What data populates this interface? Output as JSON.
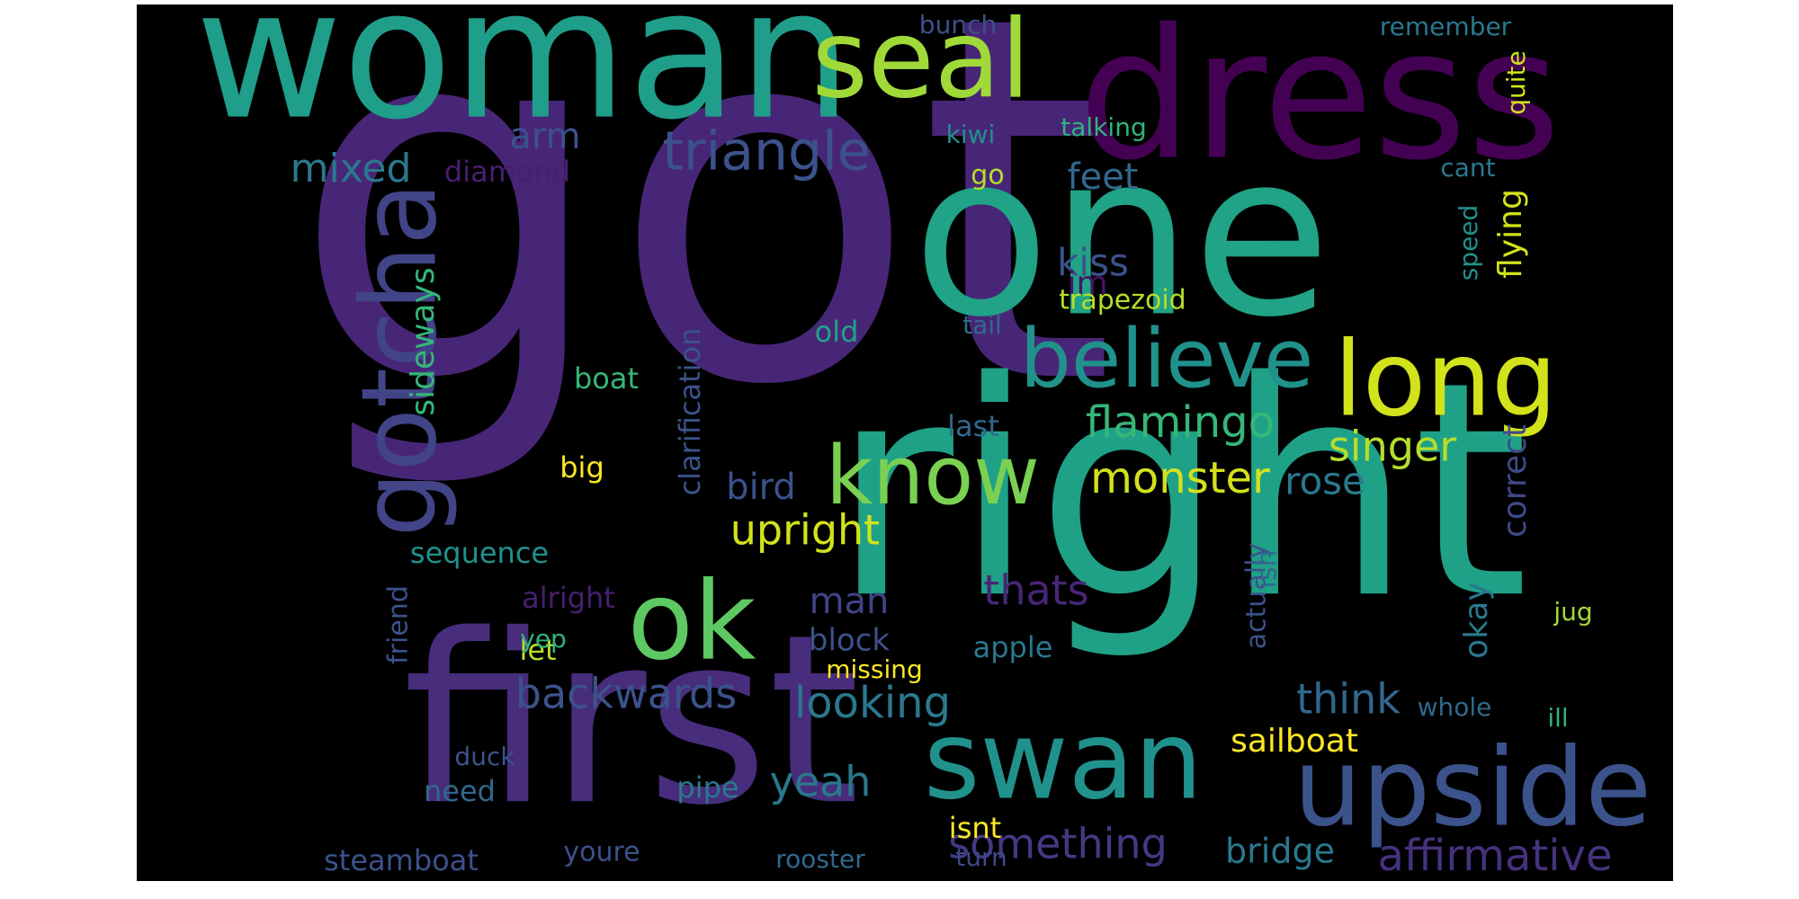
{
  "word_cloud": {
    "words": [
      {
        "text": "got",
        "color": "#482677"
      },
      {
        "text": "right",
        "color": "#1fa187"
      },
      {
        "text": "first",
        "color": "#472d7b"
      },
      {
        "text": "one",
        "color": "#20a386"
      },
      {
        "text": "woman",
        "color": "#1f9e89"
      },
      {
        "text": "dress",
        "color": "#440154"
      },
      {
        "text": "seal",
        "color": "#a0da39"
      },
      {
        "text": "upside",
        "color": "#3b528b"
      },
      {
        "text": "swan",
        "color": "#21918c"
      },
      {
        "text": "long",
        "color": "#d2e21b"
      },
      {
        "text": "ok",
        "color": "#5ec962"
      },
      {
        "text": "gotcha",
        "color": "#414487"
      },
      {
        "text": "believe",
        "color": "#21918c"
      },
      {
        "text": "know",
        "color": "#7ad151"
      },
      {
        "text": "triangle",
        "color": "#3b528b"
      },
      {
        "text": "affirmative",
        "color": "#46327e"
      },
      {
        "text": "sideways",
        "color": "#35b779"
      },
      {
        "text": "flamingo",
        "color": "#35b779"
      },
      {
        "text": "monster",
        "color": "#d2e21b"
      },
      {
        "text": "singer",
        "color": "#b5de2b"
      },
      {
        "text": "backwards",
        "color": "#3b528b"
      },
      {
        "text": "looking",
        "color": "#2a788e"
      },
      {
        "text": "something",
        "color": "#443983"
      },
      {
        "text": "upright",
        "color": "#d2e21b"
      },
      {
        "text": "think",
        "color": "#31688e"
      },
      {
        "text": "yeah",
        "color": "#2a788e"
      },
      {
        "text": "sailboat",
        "color": "#fde725"
      },
      {
        "text": "bridge",
        "color": "#2a788e"
      },
      {
        "text": "mixed",
        "color": "#2a788e"
      },
      {
        "text": "feet",
        "color": "#31688e"
      },
      {
        "text": "kiss",
        "color": "#3b528b"
      },
      {
        "text": "bird",
        "color": "#3b528b"
      },
      {
        "text": "rose",
        "color": "#2a788e"
      },
      {
        "text": "thats",
        "color": "#482677"
      },
      {
        "text": "man",
        "color": "#414487"
      },
      {
        "text": "correct",
        "color": "#3e4a89"
      },
      {
        "text": "flying",
        "color": "#d2e21b"
      },
      {
        "text": "okay",
        "color": "#2a788e"
      },
      {
        "text": "clarification",
        "color": "#3b528b"
      },
      {
        "text": "steamboat",
        "color": "#3b528b"
      },
      {
        "text": "sequence",
        "color": "#21918c"
      },
      {
        "text": "arm",
        "color": "#3b528b"
      },
      {
        "text": "diamond",
        "color": "#481f70"
      },
      {
        "text": "block",
        "color": "#3b528b"
      },
      {
        "text": "apple",
        "color": "#2a788e"
      },
      {
        "text": "im",
        "color": "#481467"
      },
      {
        "text": "old",
        "color": "#20a386"
      },
      {
        "text": "boat",
        "color": "#35b779"
      },
      {
        "text": "alright",
        "color": "#481f70"
      },
      {
        "text": "trapezoid",
        "color": "#b5de2b"
      },
      {
        "text": "talking",
        "color": "#2fb47c"
      },
      {
        "text": "quite",
        "color": "#d2e21b"
      },
      {
        "text": "speed",
        "color": "#21918c"
      },
      {
        "text": "isnt",
        "color": "#fde725"
      },
      {
        "text": "need",
        "color": "#31688e"
      },
      {
        "text": "pipe",
        "color": "#2a788e"
      },
      {
        "text": "turn",
        "color": "#3e4a89"
      },
      {
        "text": "rooster",
        "color": "#31688e"
      },
      {
        "text": "youre",
        "color": "#3b528b"
      },
      {
        "text": "big",
        "color": "#fde725"
      },
      {
        "text": "let",
        "color": "#b5de2b"
      },
      {
        "text": "last",
        "color": "#31688e"
      },
      {
        "text": "missing",
        "color": "#fde725"
      },
      {
        "text": "friend",
        "color": "#3b528b"
      },
      {
        "text": "yep",
        "color": "#2fb47c"
      },
      {
        "text": "actually",
        "color": "#3b528b"
      },
      {
        "text": "ish",
        "color": "#31688e"
      },
      {
        "text": "jug",
        "color": "#a0da39"
      },
      {
        "text": "whole",
        "color": "#31688e"
      },
      {
        "text": "ill",
        "color": "#2fb47c"
      },
      {
        "text": "duck",
        "color": "#3b528b"
      },
      {
        "text": "remember",
        "color": "#2a788e"
      },
      {
        "text": "bunch",
        "color": "#3b528b"
      },
      {
        "text": "kiwi",
        "color": "#21918c"
      },
      {
        "text": "go",
        "color": "#b5de2b"
      },
      {
        "text": "cant",
        "color": "#2a788e"
      },
      {
        "text": "tail",
        "color": "#31688e"
      }
    ]
  }
}
